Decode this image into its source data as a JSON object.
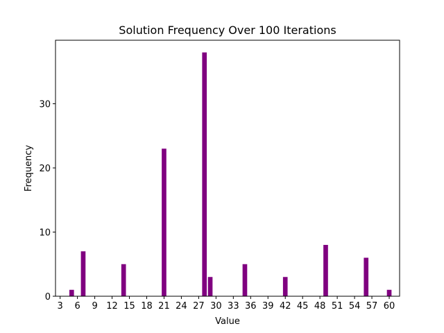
{
  "chart_data": {
    "type": "bar",
    "title": "Solution Frequency Over 100 Iterations",
    "xlabel": "Value",
    "ylabel": "Frequency",
    "xlim": [
      2.2,
      61.8
    ],
    "ylim": [
      0,
      39.9
    ],
    "xticks": [
      3,
      6,
      9,
      12,
      15,
      18,
      21,
      24,
      27,
      30,
      33,
      36,
      39,
      42,
      45,
      48,
      51,
      54,
      57,
      60
    ],
    "yticks": [
      0,
      10,
      20,
      30
    ],
    "bar_color": "#800080",
    "bar_width": 0.8,
    "x": [
      5,
      7,
      14,
      21,
      28,
      29,
      35,
      42,
      49,
      56,
      60
    ],
    "values": [
      1,
      7,
      5,
      23,
      38,
      3,
      5,
      3,
      8,
      6,
      1
    ],
    "grid": false,
    "legend": false
  }
}
